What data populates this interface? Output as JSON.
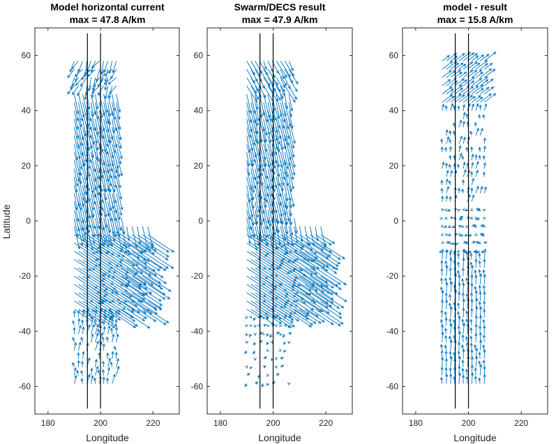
{
  "figure": {
    "y_axis_label": "Latitude",
    "x_axis_label": "Longitude"
  },
  "chart_data": [
    {
      "type": "quiver",
      "title_line1": "Model horizontal current",
      "title_line2": "max = 47.8 A/km",
      "xlabel": "Longitude",
      "ylabel": "Latitude",
      "xlim": [
        175,
        230
      ],
      "ylim": [
        -70,
        70
      ],
      "xticks": [
        180,
        200,
        220
      ],
      "yticks": [
        -60,
        -40,
        -20,
        0,
        20,
        40,
        60
      ],
      "vertical_lines_longitude": [
        195,
        200
      ],
      "vertical_lines_lat_range": [
        -68,
        68
      ],
      "max_magnitude": 47.8,
      "units": "A/km",
      "arrow_color": "#0072BD",
      "grid": false,
      "region": "full"
    },
    {
      "type": "quiver",
      "title_line1": "Swarm/DECS result",
      "title_line2": "max = 47.9 A/km",
      "xlabel": "Longitude",
      "ylabel": "",
      "xlim": [
        175,
        230
      ],
      "ylim": [
        -70,
        70
      ],
      "xticks": [
        180,
        200,
        220
      ],
      "yticks": [
        -60,
        -40,
        -20,
        0,
        20,
        40,
        60
      ],
      "vertical_lines_longitude": [
        195,
        200
      ],
      "vertical_lines_lat_range": [
        -68,
        68
      ],
      "max_magnitude": 47.9,
      "units": "A/km",
      "arrow_color": "#0072BD",
      "grid": false,
      "region": "full"
    },
    {
      "type": "quiver",
      "title_line1": "model - result",
      "title_line2": "max = 15.8 A/km",
      "xlabel": "Longitude",
      "ylabel": "",
      "xlim": [
        175,
        230
      ],
      "ylim": [
        -70,
        70
      ],
      "xticks": [
        180,
        200,
        220
      ],
      "yticks": [
        -60,
        -40,
        -20,
        0,
        20,
        40,
        60
      ],
      "vertical_lines_longitude": [
        195,
        200
      ],
      "vertical_lines_lat_range": [
        -68,
        68
      ],
      "max_magnitude": 15.8,
      "units": "A/km",
      "arrow_color": "#0072BD",
      "grid": false,
      "region": "difference"
    }
  ]
}
